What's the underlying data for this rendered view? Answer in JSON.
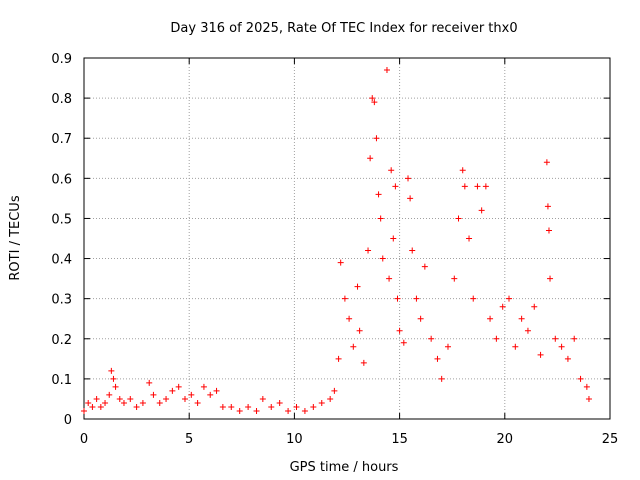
{
  "chart_data": {
    "type": "scatter",
    "title": "Day 316 of 2025, Rate Of TEC Index for receiver thx0",
    "xlabel": "GPS time / hours",
    "ylabel": "ROTI / TECUs",
    "xlim": [
      0,
      25
    ],
    "ylim": [
      0,
      0.9
    ],
    "xticks": [
      "0",
      "5",
      "10",
      "15",
      "20",
      "25"
    ],
    "yticks": [
      "0",
      "0.1",
      "0.2",
      "0.3",
      "0.4",
      "0.5",
      "0.6",
      "0.7",
      "0.8",
      "0.9"
    ],
    "grid": true,
    "marker": "+",
    "color": "#ff0000",
    "series": [
      {
        "points": [
          [
            0.0,
            0.02
          ],
          [
            0.2,
            0.04
          ],
          [
            0.4,
            0.03
          ],
          [
            0.6,
            0.05
          ],
          [
            0.8,
            0.03
          ],
          [
            1.0,
            0.04
          ],
          [
            1.2,
            0.06
          ],
          [
            1.3,
            0.12
          ],
          [
            1.4,
            0.1
          ],
          [
            1.5,
            0.08
          ],
          [
            1.7,
            0.05
          ],
          [
            1.9,
            0.04
          ],
          [
            2.2,
            0.05
          ],
          [
            2.5,
            0.03
          ],
          [
            2.8,
            0.04
          ],
          [
            3.1,
            0.09
          ],
          [
            3.3,
            0.06
          ],
          [
            3.6,
            0.04
          ],
          [
            3.9,
            0.05
          ],
          [
            4.2,
            0.07
          ],
          [
            4.5,
            0.08
          ],
          [
            4.8,
            0.05
          ],
          [
            5.1,
            0.06
          ],
          [
            5.4,
            0.04
          ],
          [
            5.7,
            0.08
          ],
          [
            6.0,
            0.06
          ],
          [
            6.3,
            0.07
          ],
          [
            6.6,
            0.03
          ],
          [
            7.0,
            0.03
          ],
          [
            7.4,
            0.02
          ],
          [
            7.8,
            0.03
          ],
          [
            8.2,
            0.02
          ],
          [
            8.5,
            0.05
          ],
          [
            8.9,
            0.03
          ],
          [
            9.3,
            0.04
          ],
          [
            9.7,
            0.02
          ],
          [
            10.1,
            0.03
          ],
          [
            10.5,
            0.02
          ],
          [
            10.9,
            0.03
          ],
          [
            11.3,
            0.04
          ],
          [
            11.7,
            0.05
          ],
          [
            11.9,
            0.07
          ],
          [
            12.1,
            0.15
          ],
          [
            12.2,
            0.39
          ],
          [
            12.4,
            0.3
          ],
          [
            12.6,
            0.25
          ],
          [
            12.8,
            0.18
          ],
          [
            13.0,
            0.33
          ],
          [
            13.1,
            0.22
          ],
          [
            13.3,
            0.14
          ],
          [
            13.5,
            0.42
          ],
          [
            13.6,
            0.65
          ],
          [
            13.7,
            0.8
          ],
          [
            13.8,
            0.79
          ],
          [
            13.9,
            0.7
          ],
          [
            14.0,
            0.56
          ],
          [
            14.1,
            0.5
          ],
          [
            14.2,
            0.4
          ],
          [
            14.4,
            0.87
          ],
          [
            14.5,
            0.35
          ],
          [
            14.6,
            0.62
          ],
          [
            14.7,
            0.45
          ],
          [
            14.8,
            0.58
          ],
          [
            14.9,
            0.3
          ],
          [
            15.0,
            0.22
          ],
          [
            15.2,
            0.19
          ],
          [
            15.4,
            0.6
          ],
          [
            15.5,
            0.55
          ],
          [
            15.6,
            0.42
          ],
          [
            15.8,
            0.3
          ],
          [
            16.0,
            0.25
          ],
          [
            16.2,
            0.38
          ],
          [
            16.5,
            0.2
          ],
          [
            16.8,
            0.15
          ],
          [
            17.0,
            0.1
          ],
          [
            17.3,
            0.18
          ],
          [
            17.6,
            0.35
          ],
          [
            17.8,
            0.5
          ],
          [
            18.0,
            0.62
          ],
          [
            18.1,
            0.58
          ],
          [
            18.3,
            0.45
          ],
          [
            18.5,
            0.3
          ],
          [
            18.7,
            0.58
          ],
          [
            18.9,
            0.52
          ],
          [
            19.1,
            0.58
          ],
          [
            19.3,
            0.25
          ],
          [
            19.6,
            0.2
          ],
          [
            19.9,
            0.28
          ],
          [
            20.2,
            0.3
          ],
          [
            20.5,
            0.18
          ],
          [
            20.8,
            0.25
          ],
          [
            21.1,
            0.22
          ],
          [
            21.4,
            0.28
          ],
          [
            21.7,
            0.16
          ],
          [
            22.0,
            0.64
          ],
          [
            22.05,
            0.53
          ],
          [
            22.1,
            0.47
          ],
          [
            22.15,
            0.35
          ],
          [
            22.4,
            0.2
          ],
          [
            22.7,
            0.18
          ],
          [
            23.0,
            0.15
          ],
          [
            23.3,
            0.2
          ],
          [
            23.6,
            0.1
          ],
          [
            23.9,
            0.08
          ],
          [
            24.0,
            0.05
          ]
        ]
      }
    ]
  }
}
